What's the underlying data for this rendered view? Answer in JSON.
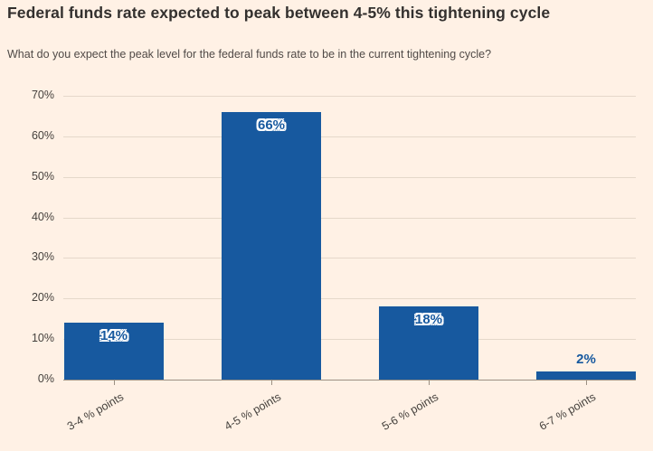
{
  "header": {
    "title": "Federal funds rate expected to peak between 4-5% this tightening cycle",
    "subtitle": "What do you expect the peak level for the federal funds rate to be in the current tightening cycle?"
  },
  "chart_data": {
    "type": "bar",
    "title": "Federal funds rate expected to peak between 4-5% this tightening cycle",
    "subtitle": "What do you expect the peak level for the federal funds rate to be in the current tightening cycle?",
    "categories": [
      "3-4 % points",
      "4-5 % points",
      "5-6 % points",
      "6-7 % points"
    ],
    "values": [
      14,
      66,
      18,
      2
    ],
    "data_labels": [
      "14%",
      "66%",
      "18%",
      "2%"
    ],
    "y_ticks": [
      "70%",
      "60%",
      "50%",
      "40%",
      "30%",
      "20%",
      "10%",
      "0%"
    ],
    "y_tick_values": [
      70,
      60,
      50,
      40,
      30,
      20,
      10,
      0
    ],
    "ylim": [
      0,
      70
    ],
    "grid": true,
    "legend": "none",
    "xlabel": "",
    "ylabel": "",
    "bar_color": "#17599F",
    "background_color": "#FFF1E5",
    "gridline_color": "#E5D8CA",
    "axis_color": "#9B9083"
  }
}
